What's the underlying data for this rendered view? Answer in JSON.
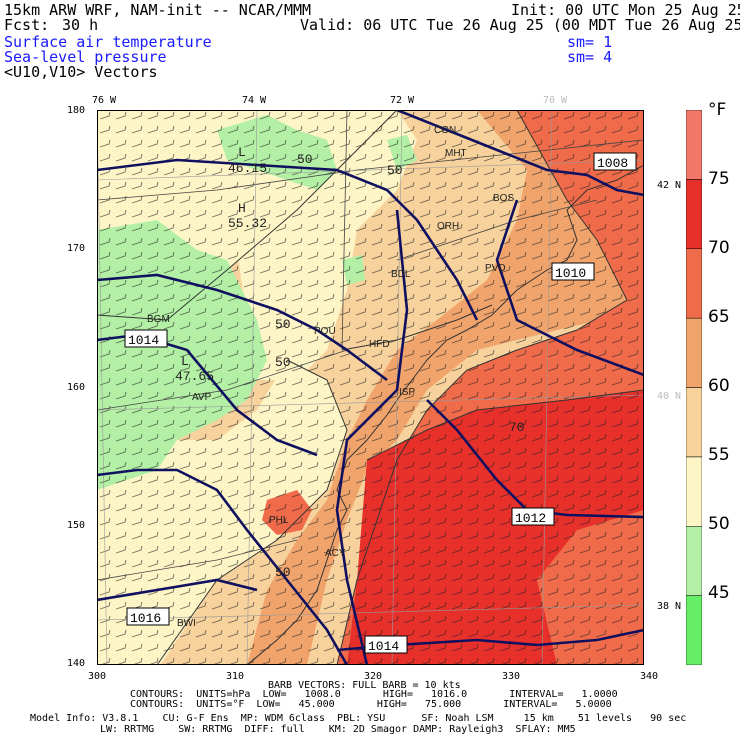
{
  "header": {
    "model": "15km ARW WRF, NAM-init -- NCAR/MMM",
    "init": "Init: 00 UTC Mon 25 Aug 25",
    "fcst_label": "Fcst:",
    "fcst_value": "30 h",
    "valid": "Valid: 06 UTC Tue 26 Aug 25 (00 MDT Tue 26 Aug 25)",
    "fields": [
      {
        "name": "Surface air temperature",
        "sm": "sm= 1",
        "color": "#1a1aff"
      },
      {
        "name": "Sea-level pressure",
        "sm": "sm= 4",
        "color": "#1a1aff"
      },
      {
        "name": "<U10,V10> Vectors",
        "sm": "",
        "color": "#000000"
      }
    ]
  },
  "axes": {
    "top_lon": [
      "76 W",
      "74 W",
      "72 W",
      "70 W"
    ],
    "right_lat": [
      "42 N",
      "40 N",
      "38 N"
    ],
    "left_y": [
      "180",
      "170",
      "160",
      "150",
      "140"
    ],
    "bottom_x": [
      "300",
      "310",
      "320",
      "330",
      "340"
    ]
  },
  "colorbar": {
    "unit": "°F",
    "labels": [
      "75",
      "70",
      "65",
      "60",
      "55",
      "50",
      "45"
    ],
    "bins": [
      {
        "range": "<45",
        "color": "#66ee66"
      },
      {
        "range": "45-50",
        "color": "#b3f0a6"
      },
      {
        "range": "50-55",
        "color": "#fdf5c6"
      },
      {
        "range": "55-60",
        "color": "#f7d29c"
      },
      {
        "range": "60-65",
        "color": "#f0a46c"
      },
      {
        "range": "65-70",
        "color": "#f06b4a"
      },
      {
        "range": "70-75",
        "color": "#e8302b"
      },
      {
        "range": ">75",
        "color": "#f2786a"
      }
    ]
  },
  "map_labels": {
    "isobars": [
      "1008",
      "1010",
      "1014",
      "1012",
      "1014",
      "1016"
    ],
    "temp_contours": [
      "50",
      "50",
      "50",
      "50",
      "50",
      "70"
    ],
    "lows": [
      {
        "mark": "L",
        "value": "46.15"
      },
      {
        "mark": "L",
        "value": "47.65"
      }
    ],
    "highs": [
      {
        "mark": "H",
        "value": "55.32"
      }
    ],
    "stations": [
      "CON",
      "MHT",
      "BOS",
      "ORH",
      "PVD",
      "BDL",
      "HFD",
      "POU",
      "BGM",
      "AVP",
      "ISP",
      "ACY",
      "BWI",
      "PHL"
    ]
  },
  "footer": {
    "barb": "BARB VECTORS: FULL BARB = 10 kts",
    "contours1": "CONTOURS:  UNITS=hPa  LOW=   1008.0       HIGH=   1016.0       INTERVAL=   1.0000",
    "contours2": "CONTOURS:  UNITS=°F  LOW=   45.000       HIGH=   75.000       INTERVAL=   5.0000",
    "model_info1": "Model Info: V3.8.1    CU: G-F Ens  MP: WDM 6class  PBL: YSU      SF: Noah LSM     15 km    51 levels   90 sec",
    "model_info2": "LW: RRTMG    SW: RRTMG  DIFF: full    KM: 2D Smagor DAMP: Rayleigh3  SFLAY: MM5"
  }
}
